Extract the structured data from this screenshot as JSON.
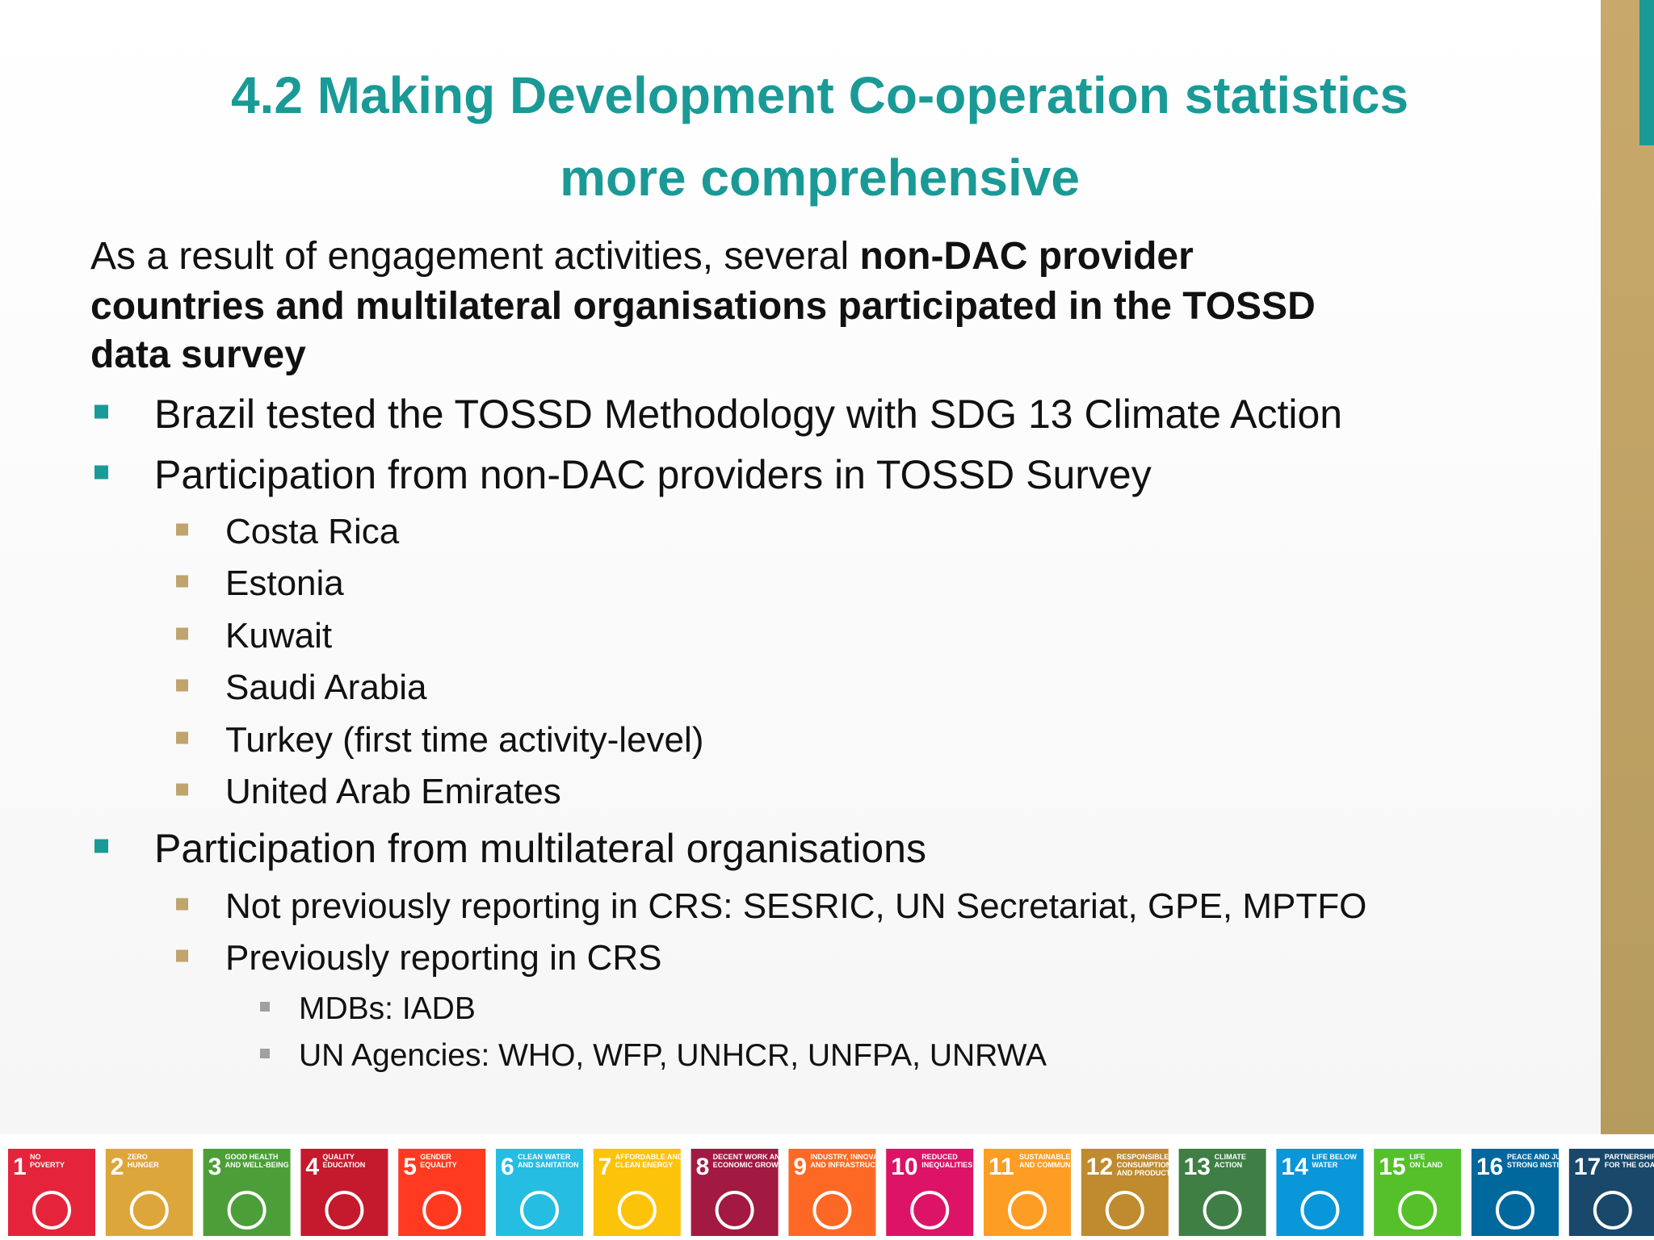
{
  "title_lines": [
    "4.2 Making Development Co-operation statistics",
    "more comprehensive"
  ],
  "intro": {
    "lines": [
      {
        "regular": "As a result of engagement activities, several ",
        "bold": "non-DAC provider"
      },
      {
        "bold": "countries and multilateral organisations participated in the TOSSD"
      },
      {
        "bold": "data survey"
      }
    ]
  },
  "bullets": [
    {
      "level": 1,
      "text": "Brazil tested the TOSSD Methodology with SDG 13 Climate Action"
    },
    {
      "level": 1,
      "text": "Participation from non-DAC providers in TOSSD Survey"
    },
    {
      "level": 2,
      "text": "Costa Rica"
    },
    {
      "level": 2,
      "text": "Estonia"
    },
    {
      "level": 2,
      "text": "Kuwait"
    },
    {
      "level": 2,
      "text": "Saudi Arabia"
    },
    {
      "level": 2,
      "text": "Turkey (first time activity-level)"
    },
    {
      "level": 2,
      "text": "United Arab Emirates"
    },
    {
      "level": 1,
      "text": "Participation from multilateral organisations"
    },
    {
      "level": 2,
      "text": "Not previously reporting in CRS: SESRIC, UN Secretariat, GPE, MPTFO"
    },
    {
      "level": 2,
      "text": "Previously reporting in CRS"
    },
    {
      "level": 3,
      "text": "MDBs: IADB"
    },
    {
      "level": 3,
      "text": "UN Agencies: WHO, WFP, UNHCR, UNFPA, UNRWA"
    }
  ],
  "sdg_tiles": [
    {
      "number": "1",
      "label": [
        "NO",
        "POVERTY"
      ],
      "color": "#e5243b"
    },
    {
      "number": "2",
      "label": [
        "ZERO",
        "HUNGER"
      ],
      "color": "#dda63a"
    },
    {
      "number": "3",
      "label": [
        "GOOD HEALTH",
        "AND WELL-BEING"
      ],
      "color": "#4c9f38"
    },
    {
      "number": "4",
      "label": [
        "QUALITY",
        "EDUCATION"
      ],
      "color": "#c5192d"
    },
    {
      "number": "5",
      "label": [
        "GENDER",
        "EQUALITY"
      ],
      "color": "#ff3a21"
    },
    {
      "number": "6",
      "label": [
        "CLEAN WATER",
        "AND SANITATION"
      ],
      "color": "#26bde2"
    },
    {
      "number": "7",
      "label": [
        "AFFORDABLE AND",
        "CLEAN ENERGY"
      ],
      "color": "#fcc30b"
    },
    {
      "number": "8",
      "label": [
        "DECENT WORK AND",
        "ECONOMIC GROWTH"
      ],
      "color": "#a21942"
    },
    {
      "number": "9",
      "label": [
        "INDUSTRY, INNOVATION",
        "AND INFRASTRUCTURE"
      ],
      "color": "#fd6925"
    },
    {
      "number": "10",
      "label": [
        "REDUCED",
        "INEQUALITIES"
      ],
      "color": "#dd1367"
    },
    {
      "number": "11",
      "label": [
        "SUSTAINABLE CITIES",
        "AND COMMUNITIES"
      ],
      "color": "#fd9d24"
    },
    {
      "number": "12",
      "label": [
        "RESPONSIBLE",
        "CONSUMPTION",
        "AND PRODUCTION"
      ],
      "color": "#bf8b2e"
    },
    {
      "number": "13",
      "label": [
        "CLIMATE",
        "ACTION"
      ],
      "color": "#3f7e44"
    },
    {
      "number": "14",
      "label": [
        "LIFE BELOW",
        "WATER"
      ],
      "color": "#0a97d9"
    },
    {
      "number": "15",
      "label": [
        "LIFE",
        "ON LAND"
      ],
      "color": "#56c02b"
    },
    {
      "number": "16",
      "label": [
        "PEACE AND JUSTICE",
        "STRONG INSTITUTIONS"
      ],
      "color": "#00689d"
    },
    {
      "number": "17",
      "label": [
        "PARTNERSHIPS",
        "FOR THE GOALS"
      ],
      "color": "#19486a"
    }
  ]
}
